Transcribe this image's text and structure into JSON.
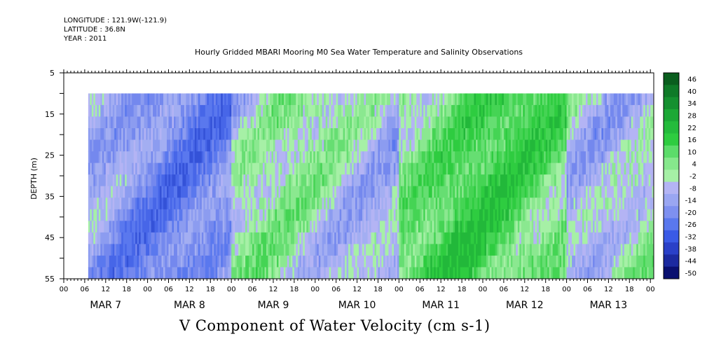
{
  "header": {
    "longitude": "LONGITUDE : 121.9W(-121.9)",
    "latitude": "LATITUDE : 36.8N",
    "year": "YEAR : 2011"
  },
  "chart_data": {
    "type": "heatmap",
    "title": "Hourly Gridded MBARI Mooring M0 Sea Water Temperature and Salinity Observations",
    "xlabel": "V Component of Water Velocity (cm s-1)",
    "ylabel": "DEPTH (m)",
    "y_axis": {
      "range": [
        5,
        55
      ],
      "inverted": true,
      "ticks": [
        5,
        15,
        25,
        35,
        45,
        55
      ],
      "minor_step": 5
    },
    "x_axis": {
      "hour_ticks": [
        "00",
        "06",
        "12",
        "18",
        "00",
        "06",
        "12",
        "18",
        "00",
        "06",
        "12",
        "18",
        "00",
        "06",
        "12",
        "18",
        "00",
        "06",
        "12",
        "18",
        "00",
        "06",
        "12",
        "18",
        "00",
        "06",
        "12",
        "18",
        "00"
      ],
      "day_labels": [
        "MAR  7",
        "MAR  8",
        "MAR  9",
        "MAR 10",
        "MAR 11",
        "MAR 12",
        "MAR 13"
      ]
    },
    "data_extent": {
      "start": "MAR 7 07:00",
      "end": "MAR 14 01:00",
      "depth_range": [
        10,
        55
      ]
    },
    "colorbar": {
      "labels": [
        "46",
        "40",
        "34",
        "28",
        "22",
        "16",
        "10",
        "4",
        "-2",
        "-8",
        "-14",
        "-20",
        "-26",
        "-32",
        "-38",
        "-44",
        "-50"
      ],
      "colors": {
        "strong_positive": "#0a5e1e",
        "positive": "#2ecc40",
        "weak_positive": "#a6f0a6",
        "weak_negative": "#b4b4f4",
        "negative": "#5a78ee",
        "strong_negative": "#0a1070"
      }
    },
    "regime_by_day": [
      {
        "day": "MAR 7",
        "dominant": "negative"
      },
      {
        "day": "MAR 8",
        "dominant": "negative"
      },
      {
        "day": "MAR 9",
        "dominant": "mixed"
      },
      {
        "day": "MAR 10",
        "dominant": "mixed"
      },
      {
        "day": "MAR 11",
        "dominant": "positive"
      },
      {
        "day": "MAR 12",
        "dominant": "positive"
      },
      {
        "day": "MAR 13",
        "dominant": "mixed"
      }
    ]
  }
}
